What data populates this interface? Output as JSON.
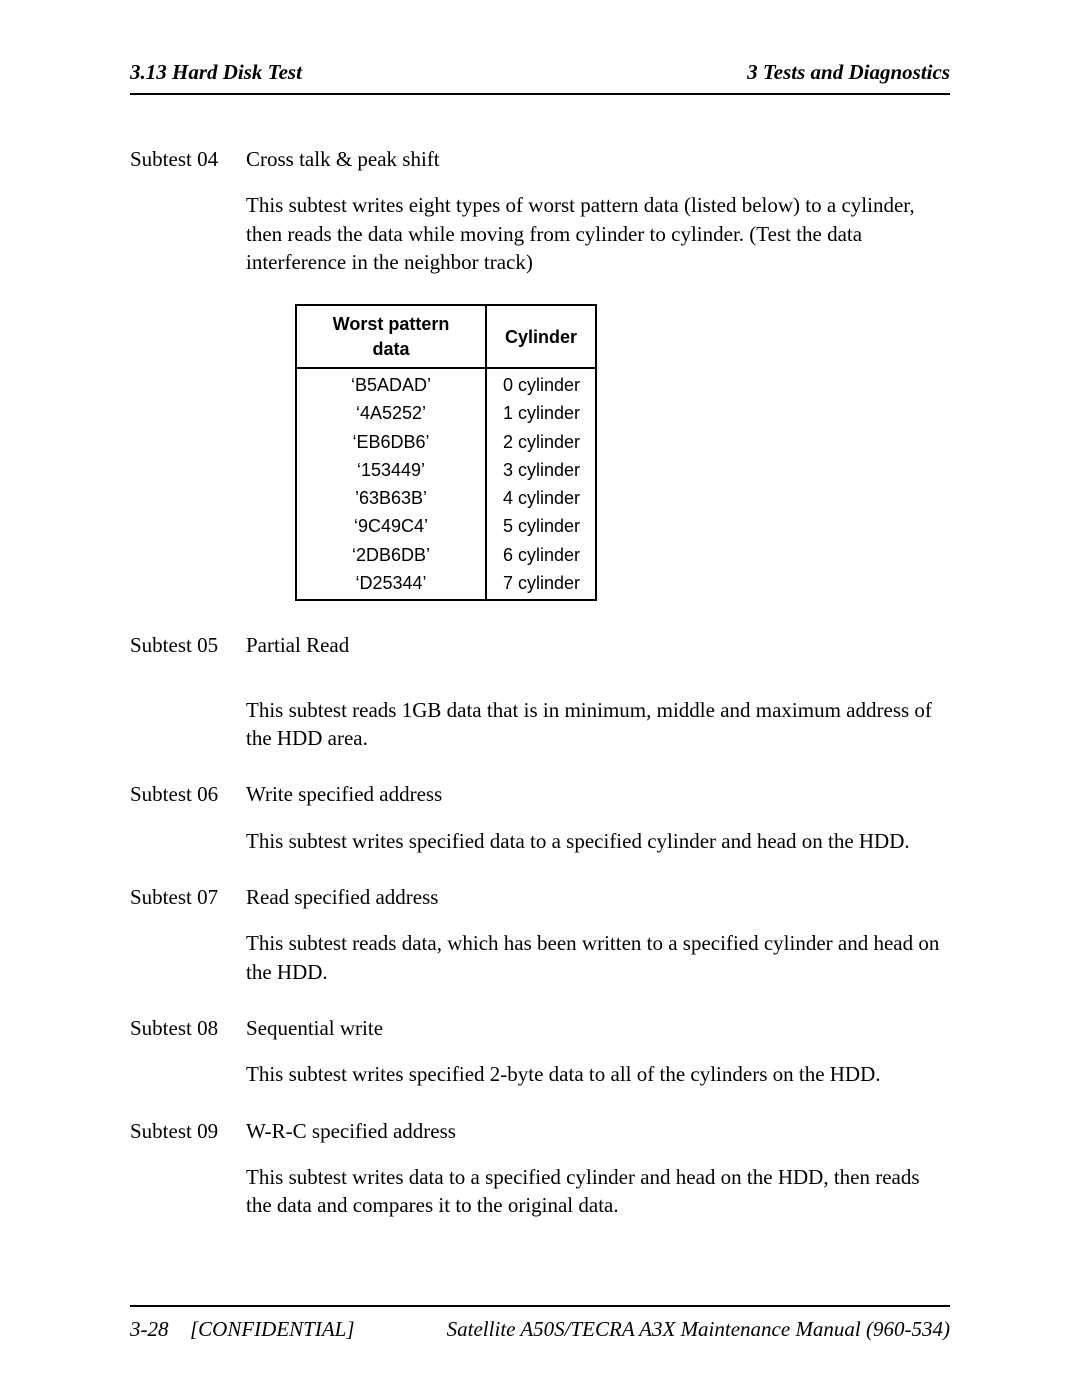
{
  "header": {
    "left": "3.13  Hard Disk Test",
    "right": "3  Tests and Diagnostics"
  },
  "subtests": {
    "s04": {
      "label": "Subtest 04",
      "title": "Cross talk & peak shift",
      "desc": "This subtest writes eight types of worst pattern data (listed below) to a cylinder, then reads the data while moving from cylinder to cylinder. (Test the data interference in the neighbor track)"
    },
    "s05": {
      "label": "Subtest 05",
      "title": "Partial Read",
      "desc": "This subtest reads 1GB data that is in minimum, middle and maximum address of the HDD area."
    },
    "s06": {
      "label": "Subtest 06",
      "title": "Write specified address",
      "desc": "This subtest writes specified data to a specified cylinder and head on the HDD."
    },
    "s07": {
      "label": "Subtest 07",
      "title": "Read specified address",
      "desc": "This subtest reads data, which has been written to a specified cylinder and head on the HDD."
    },
    "s08": {
      "label": "Subtest 08",
      "title": "Sequential write",
      "desc": "This subtest writes specified 2-byte data to all of the cylinders on the HDD."
    },
    "s09": {
      "label": "Subtest 09",
      "title": "W-R-C specified address",
      "desc": "This subtest writes data to a specified cylinder and head on the HDD, then reads the data and compares it to the original data."
    }
  },
  "table": {
    "headers": {
      "col1": "Worst pattern data",
      "col2": "Cylinder"
    },
    "rows": [
      {
        "pattern": "‘B5ADAD’",
        "cyl": "0 cylinder"
      },
      {
        "pattern": "‘4A5252’",
        "cyl": "1 cylinder"
      },
      {
        "pattern": "‘EB6DB6’",
        "cyl": "2 cylinder"
      },
      {
        "pattern": "‘153449’",
        "cyl": "3 cylinder"
      },
      {
        "pattern": "’63B63B’",
        "cyl": "4 cylinder"
      },
      {
        "pattern": "‘9C49C4’",
        "cyl": "5 cylinder"
      },
      {
        "pattern": "‘2DB6DB’",
        "cyl": "6 cylinder"
      },
      {
        "pattern": "‘D25344’",
        "cyl": "7 cylinder"
      }
    ]
  },
  "footer": {
    "page": "3-28",
    "conf": "[CONFIDENTIAL]",
    "manual": "Satellite A50S/TECRA A3X  Maintenance Manual (960-534)"
  }
}
